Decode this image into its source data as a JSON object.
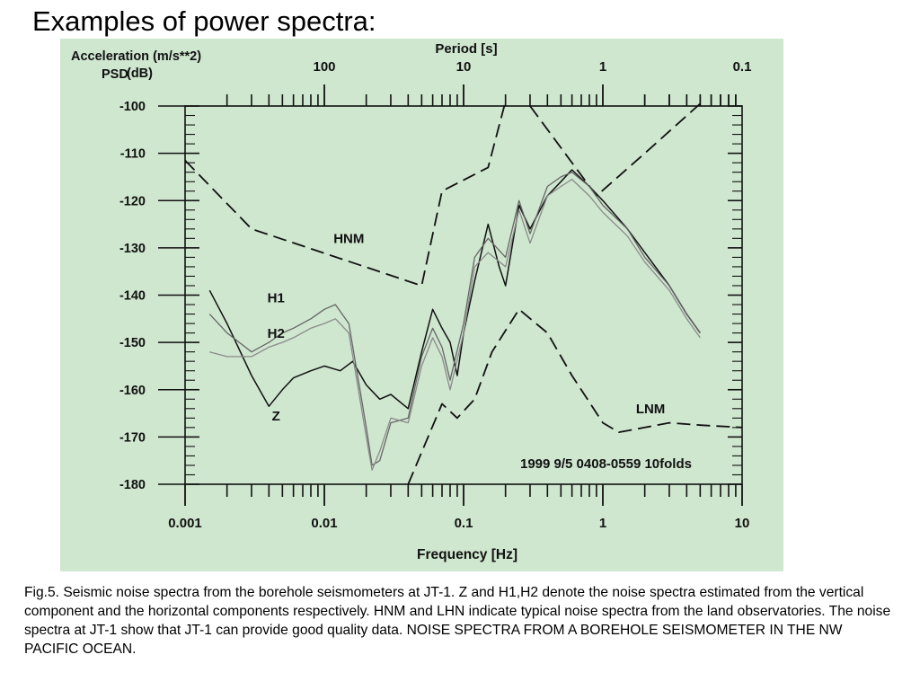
{
  "slide": {
    "title": "Examples of power spectra:",
    "caption": "Fig.5. Seismic noise spectra from the borehole seismometers at JT-1. Z and H1,H2 denote the noise spectra estimated from the vertical component and the horizontal components respectively. HNM and LHN indicate typical noise spectra from the land observatories. The noise spectra at JT-1 show that JT-1 can provide good quality data. NOISE SPECTRA FROM A BOREHOLE SEISMOMETER IN THE NW PACIFIC OCEAN."
  },
  "chart_data": {
    "type": "line",
    "x_scale": "log",
    "xlim": [
      0.001,
      10
    ],
    "ylim": [
      -180,
      -100
    ],
    "xlabel": "Frequency [Hz]",
    "x_ticks": [
      "0.001",
      "0.01",
      "0.1",
      "1",
      "10"
    ],
    "top_axis": {
      "label": "Period [s]",
      "ticks": [
        "100",
        "10",
        "1",
        "0.1"
      ]
    },
    "ylabel_line1": "Acceleration (m/s**2)",
    "ylabel_line2": "PSD",
    "ylabel_unit": "(dB)",
    "y_ticks": [
      "-100",
      "-110",
      "-120",
      "-130",
      "-140",
      "-150",
      "-160",
      "-170",
      "-180"
    ],
    "annotation": "1999 9/5 0408-0559 10folds",
    "colors": {
      "panel": "#cfe6cf",
      "axis": "#111111",
      "z": "#111111",
      "h1": "#666666",
      "h2": "#8a8a8a",
      "noise_models": "#111111"
    },
    "series": [
      {
        "name": "HNM",
        "style": "dashed",
        "x": [
          0.001,
          0.003,
          0.05,
          0.07,
          0.15,
          0.2
        ],
        "y": [
          -111.5,
          -126,
          -138,
          -118,
          -113,
          -99
        ]
      },
      {
        "name": "",
        "style": "dashed",
        "x": [
          0.3,
          0.9,
          2,
          5
        ],
        "y": [
          -100,
          -119,
          -110,
          -99.5
        ]
      },
      {
        "name": "LNM",
        "style": "dashed",
        "x": [
          0.04,
          0.07,
          0.09,
          0.12,
          0.16,
          0.25,
          0.4,
          0.6,
          1,
          1.3,
          2,
          3,
          5,
          10
        ],
        "y": [
          -180,
          -163,
          -166,
          -162,
          -152,
          -143,
          -148,
          -157,
          -167,
          -169,
          -168,
          -167,
          -167.5,
          -168
        ]
      },
      {
        "name": "Z",
        "style": "solid",
        "x": [
          0.0015,
          0.002,
          0.003,
          0.004,
          0.005,
          0.006,
          0.008,
          0.01,
          0.013,
          0.016,
          0.02,
          0.025,
          0.03,
          0.04,
          0.05,
          0.06,
          0.07,
          0.08,
          0.09,
          0.1,
          0.12,
          0.15,
          0.18,
          0.2,
          0.25,
          0.3,
          0.4,
          0.5,
          0.6,
          0.8,
          1,
          1.5,
          2,
          3,
          4,
          5
        ],
        "y": [
          -139,
          -146,
          -157,
          -163.5,
          -160,
          -157.5,
          -156,
          -155,
          -156,
          -154,
          -159,
          -162,
          -161,
          -164,
          -152,
          -143,
          -147,
          -150,
          -157,
          -148,
          -137,
          -125,
          -134,
          -138,
          -121,
          -126,
          -119,
          -116,
          -113.5,
          -117,
          -120,
          -126,
          -131,
          -138,
          -144,
          -148
        ]
      },
      {
        "name": "H1",
        "style": "solid",
        "x": [
          0.0015,
          0.002,
          0.003,
          0.004,
          0.005,
          0.006,
          0.008,
          0.01,
          0.012,
          0.015,
          0.02,
          0.022,
          0.025,
          0.03,
          0.04,
          0.05,
          0.06,
          0.07,
          0.08,
          0.1,
          0.12,
          0.15,
          0.2,
          0.25,
          0.3,
          0.4,
          0.5,
          0.6,
          0.8,
          1,
          1.5,
          2,
          3,
          4,
          5
        ],
        "y": [
          -144,
          -148,
          -152,
          -150,
          -148,
          -147,
          -145,
          -143,
          -142,
          -146,
          -168,
          -176,
          -175,
          -167,
          -166,
          -153,
          -147,
          -151,
          -158,
          -146,
          -132,
          -128,
          -132,
          -120,
          -127,
          -117,
          -115,
          -114,
          -117,
          -121,
          -126,
          -132,
          -138,
          -144,
          -148
        ]
      },
      {
        "name": "H2",
        "style": "solid",
        "x": [
          0.0015,
          0.002,
          0.003,
          0.004,
          0.005,
          0.006,
          0.008,
          0.01,
          0.012,
          0.015,
          0.02,
          0.022,
          0.025,
          0.03,
          0.04,
          0.05,
          0.06,
          0.07,
          0.08,
          0.1,
          0.12,
          0.15,
          0.2,
          0.25,
          0.3,
          0.4,
          0.5,
          0.6,
          0.8,
          1,
          1.5,
          2,
          3,
          4,
          5
        ],
        "y": [
          -152,
          -153,
          -153,
          -151,
          -150,
          -149,
          -147,
          -146,
          -145,
          -148,
          -170,
          -177,
          -173,
          -166,
          -167,
          -155,
          -149,
          -153,
          -160,
          -148,
          -134,
          -131,
          -134,
          -122,
          -129,
          -119,
          -117,
          -115.5,
          -119,
          -122.5,
          -127.5,
          -133,
          -139,
          -145,
          -149
        ]
      }
    ],
    "series_labels": [
      {
        "text": "HNM",
        "at": [
          0.015,
          -129
        ]
      },
      {
        "text": "LNM",
        "at": [
          2.2,
          -165
        ]
      },
      {
        "text": "H1",
        "at": [
          0.0045,
          -141.5
        ]
      },
      {
        "text": "H2",
        "at": [
          0.0045,
          -149
        ]
      },
      {
        "text": "Z",
        "at": [
          0.0045,
          -166.5
        ]
      }
    ]
  }
}
